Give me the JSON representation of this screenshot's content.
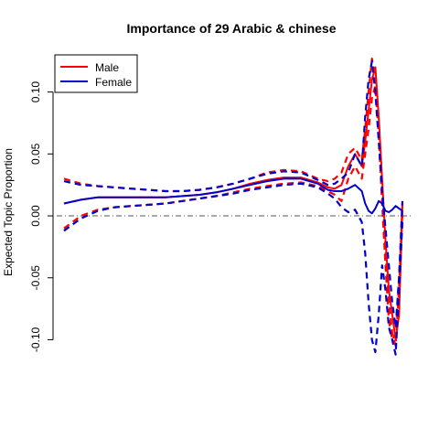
{
  "chart_data": {
    "type": "line",
    "title": "Importance of 29 Arabic & chinese",
    "xlabel": "",
    "ylabel": "Expected Topic Proportion",
    "ylim": [
      -0.11,
      0.13
    ],
    "xlim": [
      0,
      1
    ],
    "x_ticks_shown": false,
    "y_ticks": [
      -0.1,
      -0.05,
      0.0,
      0.05,
      0.1
    ],
    "y_tick_labels": [
      "-0.10",
      "-0.05",
      "0.00",
      "0.05",
      "0.10"
    ],
    "reference_line": 0.0,
    "legend": {
      "position": "top-left",
      "entries": [
        {
          "name": "Male",
          "color": "#ff0000"
        },
        {
          "name": "Female",
          "color": "#0000cc"
        }
      ]
    },
    "x": [
      0.0,
      0.05,
      0.1,
      0.15,
      0.2,
      0.25,
      0.3,
      0.35,
      0.4,
      0.45,
      0.5,
      0.55,
      0.6,
      0.65,
      0.7,
      0.75,
      0.78,
      0.8,
      0.82,
      0.84,
      0.86,
      0.88,
      0.89,
      0.9,
      0.91,
      0.92,
      0.93,
      0.94,
      0.95,
      0.96,
      0.97,
      0.98,
      0.99,
      1.0
    ],
    "series": [
      {
        "name": "Male",
        "color": "#ff0000",
        "style": "solid",
        "values": [
          0.01,
          0.013,
          0.015,
          0.015,
          0.015,
          0.015,
          0.015,
          0.016,
          0.017,
          0.019,
          0.022,
          0.026,
          0.029,
          0.031,
          0.031,
          0.027,
          0.023,
          0.022,
          0.025,
          0.04,
          0.05,
          0.04,
          0.06,
          0.085,
          0.11,
          0.12,
          0.08,
          0.03,
          -0.02,
          -0.06,
          -0.08,
          -0.1,
          -0.08,
          0.005
        ]
      },
      {
        "name": "Male upper",
        "color": "#ff0000",
        "style": "dashed",
        "values": [
          0.03,
          0.026,
          0.024,
          0.023,
          0.022,
          0.021,
          0.02,
          0.02,
          0.021,
          0.023,
          0.026,
          0.03,
          0.035,
          0.037,
          0.036,
          0.03,
          0.028,
          0.03,
          0.035,
          0.05,
          0.055,
          0.045,
          0.07,
          0.1,
          0.127,
          0.11,
          0.07,
          0.02,
          -0.03,
          -0.07,
          -0.095,
          -0.105,
          -0.06,
          0.01
        ]
      },
      {
        "name": "Male lower",
        "color": "#ff0000",
        "style": "dashed",
        "values": [
          -0.01,
          0.0,
          0.005,
          0.007,
          0.008,
          0.009,
          0.01,
          0.012,
          0.014,
          0.016,
          0.019,
          0.022,
          0.024,
          0.026,
          0.027,
          0.024,
          0.02,
          0.017,
          0.012,
          0.03,
          0.04,
          0.03,
          0.05,
          0.07,
          0.095,
          0.105,
          0.065,
          0.01,
          -0.04,
          -0.085,
          -0.1,
          -0.095,
          -0.05,
          0.0
        ]
      },
      {
        "name": "Female",
        "color": "#0000cc",
        "style": "solid",
        "values": [
          0.01,
          0.013,
          0.015,
          0.015,
          0.015,
          0.015,
          0.015,
          0.016,
          0.017,
          0.019,
          0.022,
          0.025,
          0.028,
          0.03,
          0.03,
          0.026,
          0.021,
          0.02,
          0.02,
          0.022,
          0.025,
          0.02,
          0.01,
          0.004,
          0.002,
          0.006,
          0.012,
          0.01,
          0.004,
          0.003,
          0.005,
          0.008,
          0.006,
          0.004
        ]
      },
      {
        "name": "Female upper",
        "color": "#0000cc",
        "style": "dashed",
        "values": [
          0.028,
          0.025,
          0.024,
          0.023,
          0.022,
          0.021,
          0.02,
          0.02,
          0.021,
          0.023,
          0.026,
          0.03,
          0.034,
          0.036,
          0.035,
          0.029,
          0.025,
          0.026,
          0.03,
          0.035,
          0.05,
          0.04,
          0.08,
          0.11,
          0.125,
          0.1,
          0.06,
          0.02,
          -0.01,
          -0.04,
          -0.07,
          -0.09,
          -0.05,
          0.012
        ]
      },
      {
        "name": "Female lower",
        "color": "#0000cc",
        "style": "dashed",
        "values": [
          -0.012,
          -0.002,
          0.004,
          0.007,
          0.008,
          0.009,
          0.01,
          0.012,
          0.014,
          0.016,
          0.018,
          0.021,
          0.023,
          0.025,
          0.026,
          0.023,
          0.018,
          0.014,
          0.007,
          0.003,
          0.005,
          -0.005,
          -0.03,
          -0.07,
          -0.1,
          -0.11,
          -0.08,
          -0.04,
          -0.06,
          -0.09,
          -0.1,
          -0.112,
          -0.06,
          -0.005
        ]
      }
    ]
  }
}
